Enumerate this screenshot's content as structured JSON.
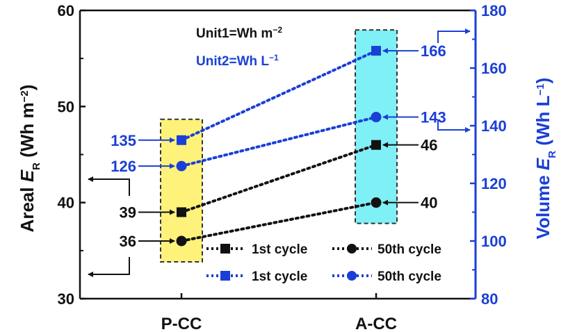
{
  "chart_data": {
    "type": "scatter",
    "categories": [
      "P-CC",
      "A-CC"
    ],
    "y_left": {
      "title_prefix": "Areal ",
      "title_symbol": "E",
      "title_sub": "R",
      "title_suffix": " (Wh m",
      "title_sup": "−2",
      "title_close": ")",
      "range": [
        30,
        60
      ],
      "ticks": [
        "30",
        "40",
        "50",
        "60"
      ]
    },
    "y_right": {
      "title_prefix": "Volume ",
      "title_symbol": "E",
      "title_sub": "R",
      "title_suffix": " (Wh L",
      "title_sup": "−1",
      "title_close": ")",
      "range": [
        80,
        180
      ],
      "ticks": [
        "80",
        "100",
        "120",
        "140",
        "160",
        "180"
      ]
    },
    "units": {
      "unit1": "Unit1=Wh m",
      "unit1_sup": "−2",
      "unit2": "Unit2=Wh L",
      "unit2_sup": "−1"
    },
    "series": [
      {
        "name": "1st cycle",
        "axis": "left",
        "marker": "square",
        "color": "#111111",
        "values": [
          39,
          46
        ],
        "labels": [
          "39",
          "46"
        ]
      },
      {
        "name": "50th cycle",
        "axis": "left",
        "marker": "circle",
        "color": "#111111",
        "values": [
          36,
          40
        ],
        "labels": [
          "36",
          "40"
        ]
      },
      {
        "name": "1st cycle",
        "axis": "right",
        "marker": "square",
        "color": "#1a3fd6",
        "values": [
          135,
          166
        ],
        "labels": [
          "135",
          "166"
        ]
      },
      {
        "name": "50th cycle",
        "axis": "right",
        "marker": "circle",
        "color": "#1a3fd6",
        "values": [
          126,
          143
        ],
        "labels": [
          "126",
          "143"
        ]
      }
    ],
    "highlight_colors": {
      "P-CC": "#fff27a",
      "A-CC": "#7ff0f5"
    },
    "axis_colors": {
      "left": "#111111",
      "right": "#1a3fd6"
    },
    "legend_position": "bottom-right"
  }
}
